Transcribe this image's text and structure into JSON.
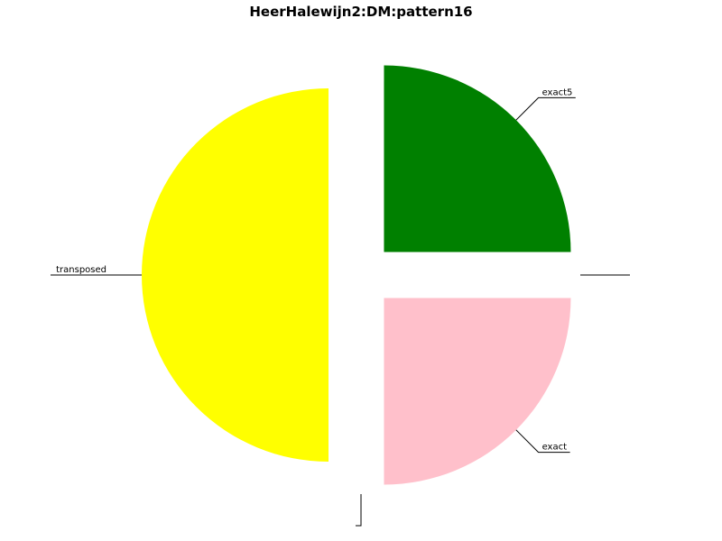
{
  "chart_data": {
    "type": "pie",
    "title": "HeerHalewijn2:DM:pattern16",
    "slices": [
      {
        "label": "transposed",
        "value": 50,
        "color": "#ffff00",
        "exploded": true
      },
      {
        "label": "",
        "value": 0,
        "color": "#ffffff",
        "exploded": true
      },
      {
        "label": "exact",
        "value": 25,
        "color": "#ffc0cb",
        "exploded": true
      },
      {
        "label": "",
        "value": 0,
        "color": "#ffffff",
        "exploded": true
      },
      {
        "label": "exact5",
        "value": 25,
        "color": "#008000",
        "exploded": true
      }
    ],
    "legend": "none"
  }
}
